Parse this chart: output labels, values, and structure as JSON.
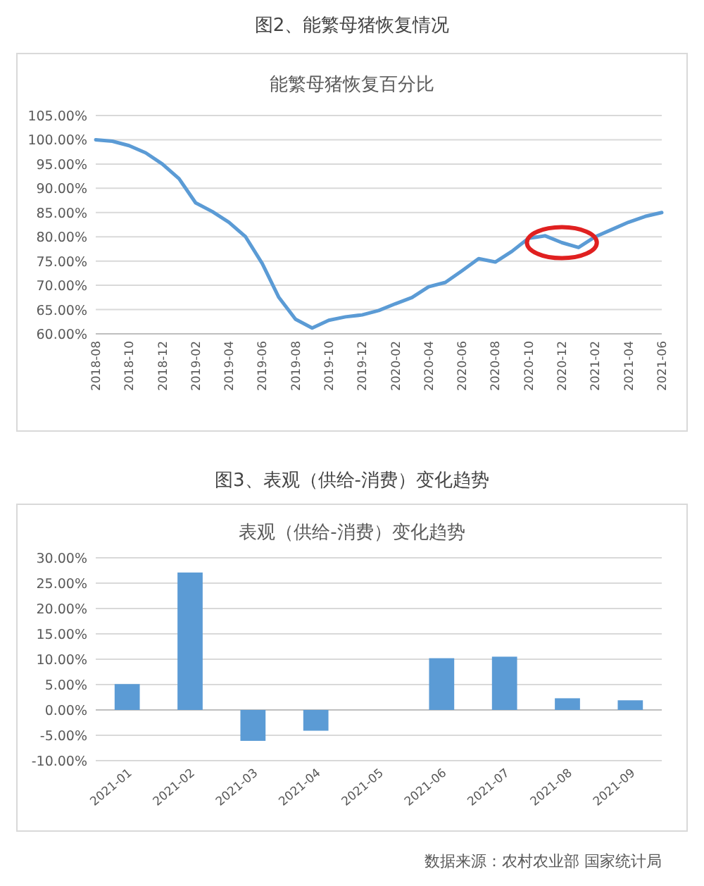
{
  "chart_data": [
    {
      "type": "line",
      "title": "图2、能繁母猪恢复情况",
      "subtitle": "能繁母猪恢复百分比",
      "categories": [
        "2018-08",
        null,
        "2018-10",
        null,
        "2018-12",
        null,
        "2019-02",
        null,
        "2019-04",
        null,
        "2019-06",
        null,
        "2019-08",
        null,
        "2019-10",
        null,
        "2019-12",
        null,
        "2020-02",
        null,
        "2020-04",
        null,
        "2020-06",
        null,
        "2020-08",
        null,
        "2020-10",
        null,
        "2020-12",
        null,
        "2021-02",
        null,
        "2021-04",
        null,
        "2021-06"
      ],
      "series": [
        {
          "color": "#5b9bd5",
          "values": [
            100,
            99.7,
            98.8,
            97.3,
            95,
            92,
            87,
            85.2,
            83,
            80,
            74.5,
            67.5,
            63,
            61.2,
            62.8,
            63.5,
            63.9,
            64.8,
            66.2,
            67.5,
            69.7,
            70.6,
            73,
            75.5,
            74.8,
            77,
            79.7,
            80.2,
            78.8,
            77.8,
            80,
            81.5,
            83,
            84.2,
            85
          ]
        }
      ],
      "ylim": [
        60,
        105
      ],
      "yticks": [
        {
          "value": 60,
          "label": "60.00%"
        },
        {
          "value": 65,
          "label": "65.00%"
        },
        {
          "value": 70,
          "label": "70.00%"
        },
        {
          "value": 75,
          "label": "75.00%"
        },
        {
          "value": 80,
          "label": "80.00%"
        },
        {
          "value": 85,
          "label": "85.00%"
        },
        {
          "value": 90,
          "label": "90.00%"
        },
        {
          "value": 95,
          "label": "95.00%"
        },
        {
          "value": 100,
          "label": "100.00%"
        },
        {
          "value": 105,
          "label": "105.00%"
        }
      ],
      "grid": "y",
      "marker": "none",
      "line_style": "solid"
    },
    {
      "type": "bar",
      "title": "图3、表观（供给-消费）变化趋势",
      "subtitle": "表观（供给-消费）变化趋势",
      "categories": [
        "2021-01",
        "2021-02",
        "2021-03",
        "2021-04",
        "2021-05",
        "2021-06",
        "2021-07",
        "2021-08",
        "2021-09"
      ],
      "values": [
        5.1,
        27.1,
        -6.1,
        -4.1,
        null,
        10.2,
        10.5,
        2.3,
        1.9
      ],
      "color": "#5b9bd5",
      "ylim": [
        -10,
        30
      ],
      "yticks": [
        {
          "value": -10,
          "label": "-10.00%"
        },
        {
          "value": -5,
          "label": "-5.00%"
        },
        {
          "value": 0,
          "label": "0.00%"
        },
        {
          "value": 5,
          "label": "5.00%"
        },
        {
          "value": 10,
          "label": "10.00%"
        },
        {
          "value": 15,
          "label": "15.00%"
        },
        {
          "value": 20,
          "label": "20.00%"
        },
        {
          "value": 25,
          "label": "25.00%"
        },
        {
          "value": 30,
          "label": "30.00%"
        }
      ],
      "grid": "y",
      "annotations": [
        "数据来源：农村农业部 国家统计局"
      ]
    }
  ]
}
